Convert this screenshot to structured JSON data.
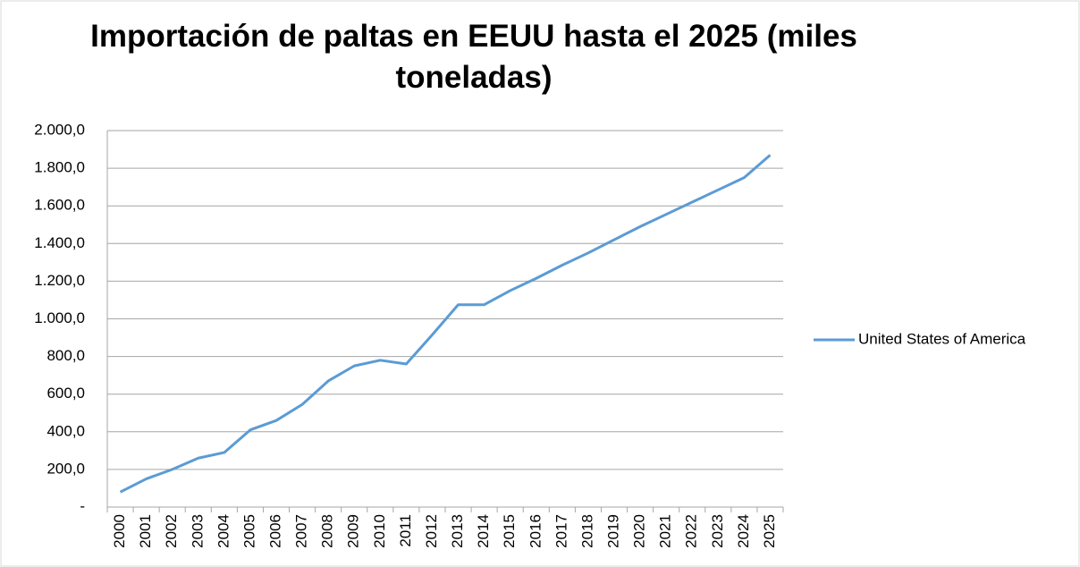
{
  "chart_data": {
    "type": "line",
    "title": "Importación de paltas en EEUU hasta el 2025 (miles toneladas)",
    "categories": [
      "2000",
      "2001",
      "2002",
      "2003",
      "2004",
      "2005",
      "2006",
      "2007",
      "2008",
      "2009",
      "2010",
      "2011",
      "2012",
      "2013",
      "2014",
      "2015",
      "2016",
      "2017",
      "2018",
      "2019",
      "2020",
      "2021",
      "2022",
      "2023",
      "2024",
      "2025"
    ],
    "series": [
      {
        "name": "United States of America",
        "color": "#5b9bd5",
        "values": [
          80,
          150,
          200,
          260,
          290,
          410,
          460,
          545,
          670,
          750,
          780,
          760,
          915,
          1075,
          1075,
          1150,
          1215,
          1285,
          1350,
          1420,
          1490,
          1555,
          1620,
          1685,
          1750,
          1870
        ]
      }
    ],
    "ylim": [
      0,
      2000
    ],
    "yticks": [
      {
        "value": 0,
        "label": "-"
      },
      {
        "value": 200,
        "label": "200,0"
      },
      {
        "value": 400,
        "label": "400,0"
      },
      {
        "value": 600,
        "label": "600,0"
      },
      {
        "value": 800,
        "label": "800,0"
      },
      {
        "value": 1000,
        "label": "1.000,0"
      },
      {
        "value": 1200,
        "label": "1.200,0"
      },
      {
        "value": 1400,
        "label": "1.400,0"
      },
      {
        "value": 1600,
        "label": "1.600,0"
      },
      {
        "value": 1800,
        "label": "1.800,0"
      },
      {
        "value": 2000,
        "label": "2.000,0"
      }
    ],
    "grid": true,
    "legend": "right"
  }
}
